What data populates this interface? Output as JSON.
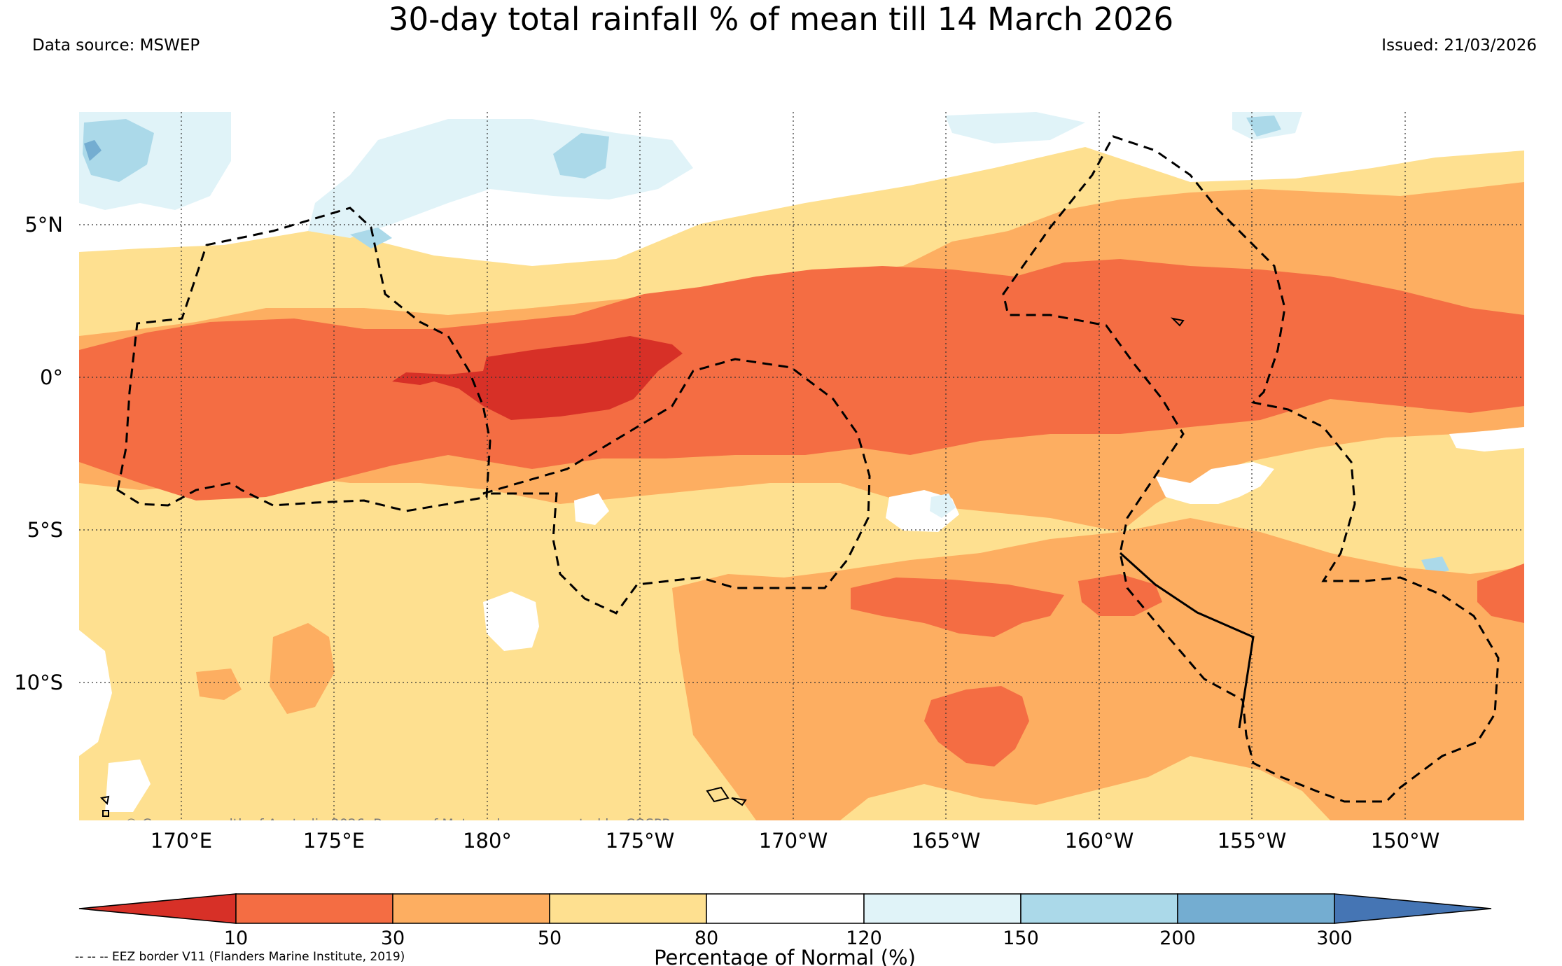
{
  "header": {
    "title": "30-day total rainfall % of mean till 14 March 2026",
    "data_source": "Data source: MSWEP",
    "issued": "Issued: 21/03/2026"
  },
  "map": {
    "longitude_labels": [
      "170°E",
      "175°E",
      "180°",
      "175°W",
      "170°W",
      "165°W",
      "160°W",
      "155°W",
      "150°W"
    ],
    "latitude_labels": [
      "5°N",
      "0°",
      "5°S",
      "10°S"
    ],
    "copyright": "© Commonwealth of Australia 2026, Bureau of Meteorology, supported by COSPPac"
  },
  "colorbar": {
    "title": "Percentage of Normal (%)",
    "tick_labels": [
      "10",
      "30",
      "50",
      "80",
      "120",
      "150",
      "200",
      "300"
    ],
    "colors": [
      "#d73027",
      "#f46d43",
      "#fdae61",
      "#fee090",
      "#ffffff",
      "#e0f3f8",
      "#abd9e9",
      "#74add1",
      "#4575b4"
    ]
  },
  "legend": {
    "eez_note": "-- -- -- EEZ border V11 (Flanders Marine Institute, 2019)"
  }
}
